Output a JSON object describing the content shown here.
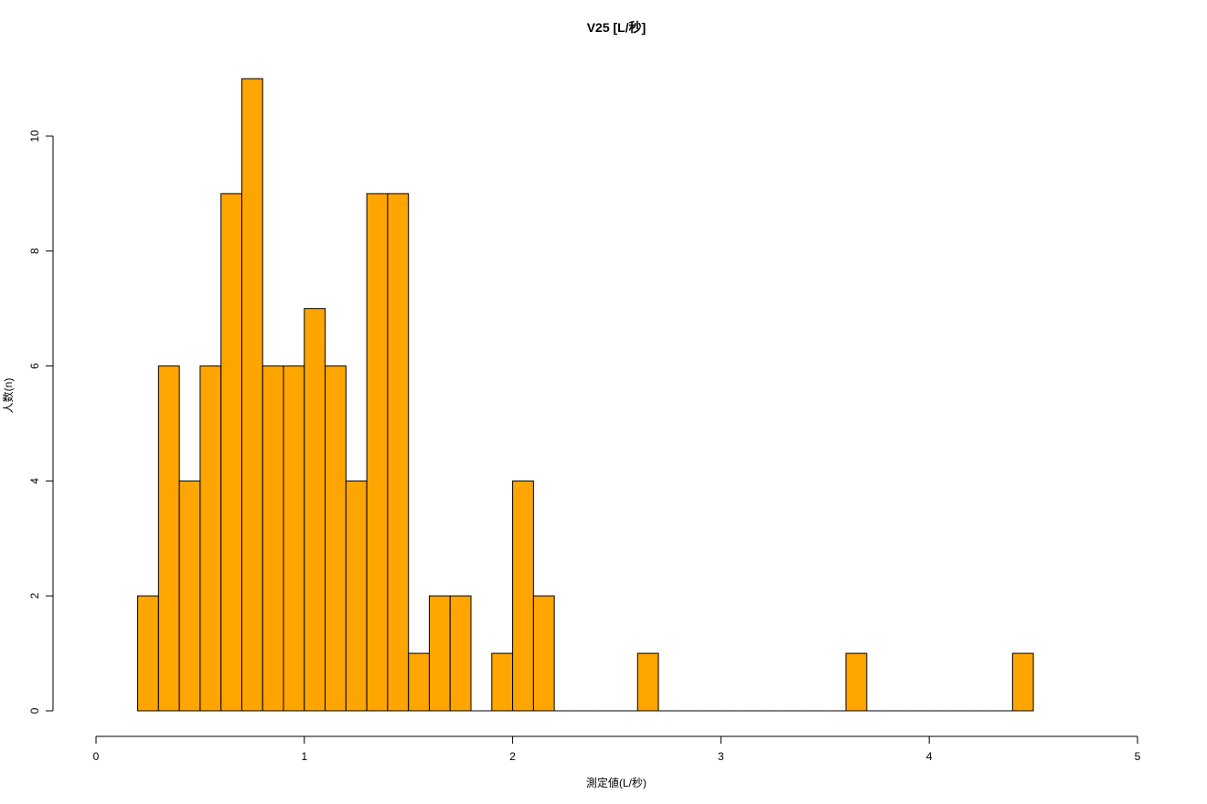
{
  "chart_data": {
    "type": "bar",
    "title": "V25 [L/秒]",
    "xlabel": "測定値(L/秒)",
    "ylabel": "人数(n)",
    "bin_width": 0.1,
    "bin_edges_start": 0.2,
    "counts": [
      2,
      6,
      4,
      6,
      9,
      11,
      6,
      6,
      7,
      6,
      4,
      9,
      9,
      1,
      2,
      2,
      0,
      1,
      4,
      2,
      0,
      0,
      0,
      0,
      1,
      0,
      0,
      0,
      0,
      0,
      0,
      0,
      0,
      0,
      1,
      0,
      0,
      0,
      0,
      0,
      0,
      0,
      1
    ],
    "xlim": [
      0,
      5
    ],
    "ylim": [
      0,
      11
    ],
    "xticks": [
      "0",
      "1",
      "2",
      "3",
      "4",
      "5"
    ],
    "yticks": [
      "0",
      "2",
      "4",
      "6",
      "8",
      "10"
    ],
    "bar_color": "#FFA500",
    "grid": false,
    "legend": "none"
  }
}
